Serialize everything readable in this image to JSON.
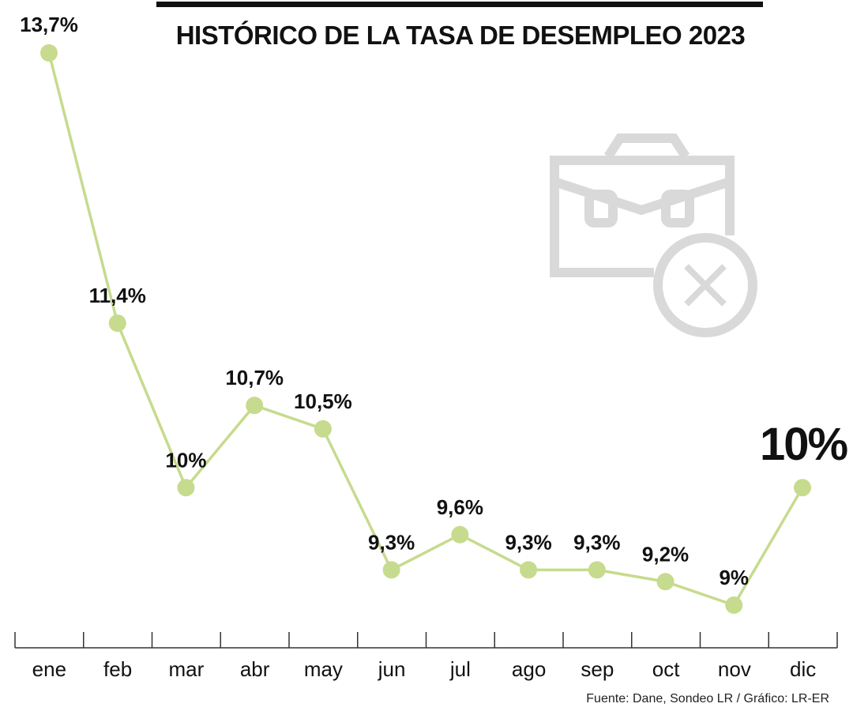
{
  "title": "HISTÓRICO DE LA TASA DE DESEMPLEO 2023",
  "source": "Fuente: Dane, Sondeo LR / Gráfico: LR-ER",
  "icon": "briefcase-with-x-icon",
  "colors": {
    "line": "#c6db8e",
    "marker": "#c6db8e",
    "text": "#111111",
    "icon": "#d9d9d9"
  },
  "chart_data": {
    "type": "line",
    "title": "HISTÓRICO DE LA TASA DE DESEMPLEO 2023",
    "xlabel": "",
    "ylabel": "",
    "categories": [
      "ene",
      "feb",
      "mar",
      "abr",
      "may",
      "jun",
      "jul",
      "ago",
      "sep",
      "oct",
      "nov",
      "dic"
    ],
    "values": [
      13.7,
      11.4,
      10,
      10.7,
      10.5,
      9.3,
      9.6,
      9.3,
      9.3,
      9.2,
      9,
      10
    ],
    "labels": [
      "13,7%",
      "11,4%",
      "10%",
      "10,7%",
      "10,5%",
      "9,3%",
      "9,6%",
      "9,3%",
      "9,3%",
      "9,2%",
      "9%",
      "10%"
    ],
    "highlight_index": 11,
    "grid": false,
    "legend": "none"
  }
}
